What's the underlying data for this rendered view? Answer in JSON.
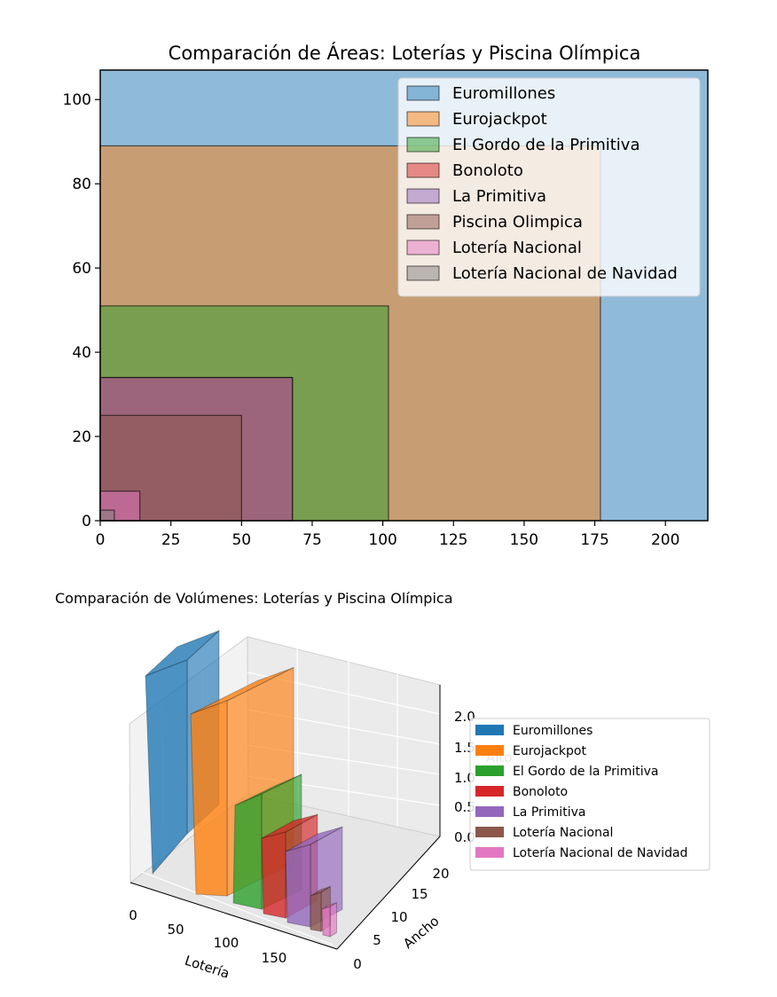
{
  "chart_data": [
    {
      "type": "area",
      "title": "Comparación de Áreas: Loterías y Piscina Olímpica",
      "xlabel": "",
      "ylabel": "",
      "xlim": [
        0,
        215
      ],
      "ylim": [
        0,
        107
      ],
      "xticks": [
        0,
        25,
        50,
        75,
        100,
        125,
        150,
        175,
        200
      ],
      "yticks": [
        0,
        20,
        40,
        60,
        80,
        100
      ],
      "grid": false,
      "legend_position": "upper-right",
      "series": [
        {
          "name": "Euromillones",
          "width": 215,
          "height": 107,
          "color": "#1f77b4"
        },
        {
          "name": "Eurojackpot",
          "width": 177,
          "height": 89,
          "color": "#ff7f0e"
        },
        {
          "name": "El Gordo de la Primitiva",
          "width": 102,
          "height": 51,
          "color": "#2ca02c"
        },
        {
          "name": "Bonoloto",
          "width": 68,
          "height": 34,
          "color": "#d62728"
        },
        {
          "name": "La Primitiva",
          "width": 68,
          "height": 34,
          "color": "#9467bd"
        },
        {
          "name": "Piscina Olimpica",
          "width": 50,
          "height": 25,
          "color": "#8c564b"
        },
        {
          "name": "Lotería Nacional",
          "width": 14,
          "height": 7,
          "color": "#e377c2"
        },
        {
          "name": "Lotería Nacional de Navidad",
          "width": 5,
          "height": 2.5,
          "color": "#7f7f7f"
        }
      ]
    },
    {
      "type": "bar3d",
      "title": "Comparación de Volúmenes: Loterías y Piscina Olímpica",
      "xlabel": "Lotería",
      "ylabel": "Ancho",
      "zlabel": "Alto",
      "x_ticks": [
        "0",
        "50",
        "100",
        "150"
      ],
      "y_ticks": [
        "0",
        "5",
        "10",
        "15",
        "20"
      ],
      "z_ticks": [
        "0.0",
        "0.5",
        "1.0",
        "1.5",
        "2.0"
      ],
      "legend_position": "right",
      "series": [
        {
          "name": "Euromillones",
          "color": "#1f77b4"
        },
        {
          "name": "Eurojackpot",
          "color": "#ff7f0e"
        },
        {
          "name": "El Gordo de la Primitiva",
          "color": "#2ca02c"
        },
        {
          "name": "Bonoloto",
          "color": "#d62728"
        },
        {
          "name": "La Primitiva",
          "color": "#9467bd"
        },
        {
          "name": "Lotería Nacional",
          "color": "#8c564b"
        },
        {
          "name": "Lotería Nacional de Navidad",
          "color": "#e377c2"
        }
      ]
    }
  ]
}
